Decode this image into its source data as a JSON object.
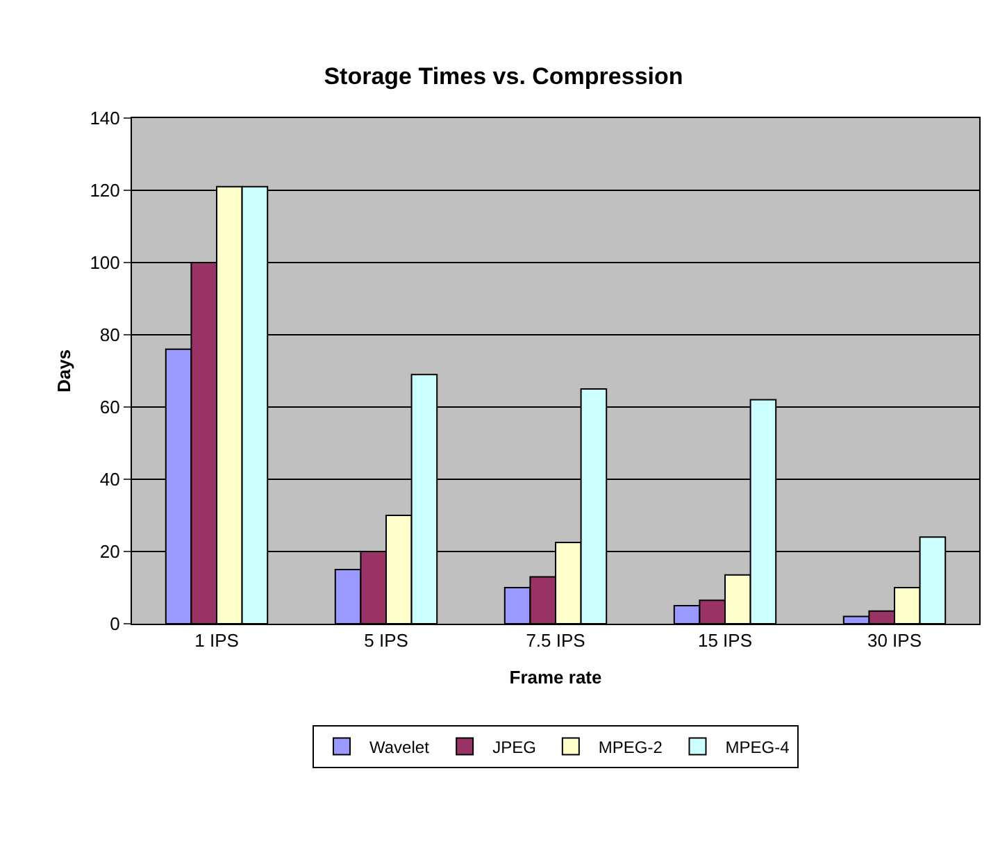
{
  "chart_data": {
    "type": "bar",
    "title": "Storage Times vs. Compression",
    "xlabel": "Frame rate",
    "ylabel": "Days",
    "categories": [
      "1 IPS",
      "5 IPS",
      "7.5 IPS",
      "15 IPS",
      "30 IPS"
    ],
    "series": [
      {
        "name": "Wavelet",
        "color": "#9999ff",
        "values": [
          76,
          15,
          10,
          5,
          2
        ]
      },
      {
        "name": "JPEG",
        "color": "#993366",
        "values": [
          100,
          20,
          13,
          6.5,
          3.5
        ]
      },
      {
        "name": "MPEG-2",
        "color": "#ffffcc",
        "values": [
          121,
          30,
          22.5,
          13.5,
          10
        ]
      },
      {
        "name": "MPEG-4",
        "color": "#ccffff",
        "values": [
          121,
          69,
          65,
          62,
          24
        ]
      }
    ],
    "ylim": [
      0,
      140
    ],
    "yticks": [
      0,
      20,
      40,
      60,
      80,
      100,
      120,
      140
    ],
    "grid": "y",
    "legend": "bottom"
  }
}
